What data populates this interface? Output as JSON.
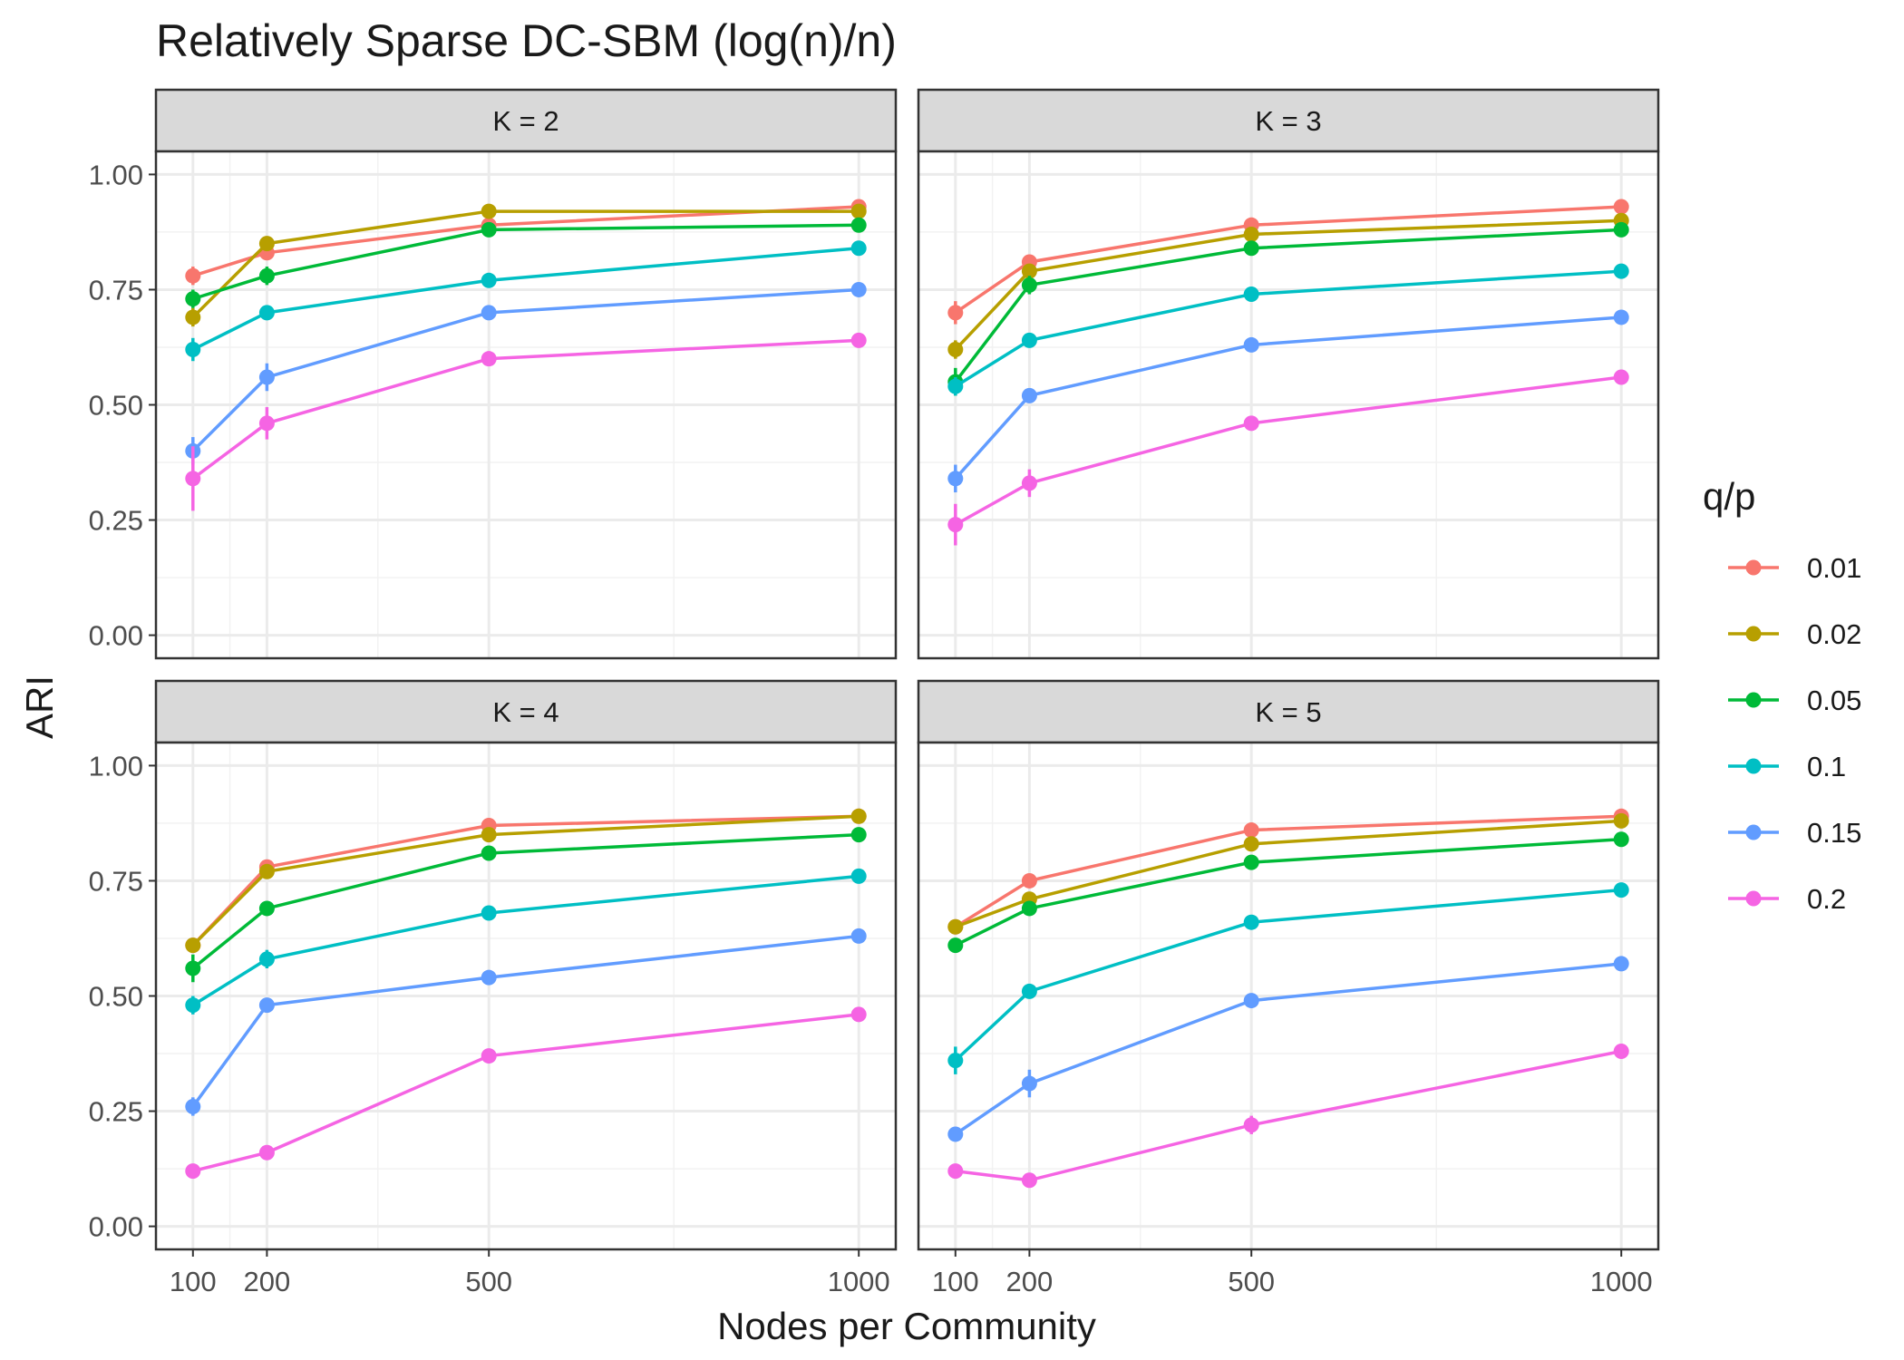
{
  "chart_data": {
    "type": "line",
    "title": "Relatively Sparse DC-SBM (log(n)/n)",
    "xlabel": "Nodes per Community",
    "ylabel": "ARI",
    "xlim": [
      50,
      1050
    ],
    "ylim": [
      -0.05,
      1.05
    ],
    "x_ticks": [
      100,
      200,
      500,
      1000
    ],
    "x_tick_labels": [
      "100",
      "200",
      "500",
      "1000"
    ],
    "y_ticks": [
      0,
      0.25,
      0.5,
      0.75,
      1.0
    ],
    "y_tick_labels": [
      "0.00",
      "0.25",
      "0.50",
      "0.75",
      "1.00"
    ],
    "legend": {
      "title": "q/p",
      "position": "right",
      "entries": [
        {
          "label": "0.01",
          "color": "#F8766D"
        },
        {
          "label": "0.02",
          "color": "#B79F00"
        },
        {
          "label": "0.05",
          "color": "#00BA38"
        },
        {
          "label": "0.1",
          "color": "#00BFC4"
        },
        {
          "label": "0.15",
          "color": "#619CFF"
        },
        {
          "label": "0.2",
          "color": "#F564E3"
        }
      ]
    },
    "x": [
      100,
      200,
      500,
      1000
    ],
    "panels": [
      {
        "label": "K = 2",
        "series": [
          {
            "name": "0.01",
            "values": [
              0.78,
              0.83,
              0.89,
              0.93
            ],
            "err": [
              0.02,
              0.015,
              0.01,
              0.01
            ]
          },
          {
            "name": "0.02",
            "values": [
              0.69,
              0.85,
              0.92,
              0.92
            ],
            "err": [
              0.02,
              0.015,
              0.01,
              0.01
            ]
          },
          {
            "name": "0.05",
            "values": [
              0.73,
              0.78,
              0.88,
              0.89
            ],
            "err": [
              0.02,
              0.02,
              0.01,
              0.01
            ]
          },
          {
            "name": "0.1",
            "values": [
              0.62,
              0.7,
              0.77,
              0.84
            ],
            "err": [
              0.025,
              0.015,
              0.01,
              0.01
            ]
          },
          {
            "name": "0.15",
            "values": [
              0.4,
              0.56,
              0.7,
              0.75
            ],
            "err": [
              0.03,
              0.03,
              0.01,
              0.01
            ]
          },
          {
            "name": "0.2",
            "values": [
              0.34,
              0.46,
              0.6,
              0.64
            ],
            "err": [
              0.07,
              0.035,
              0.01,
              0.01
            ]
          }
        ]
      },
      {
        "label": "K = 3",
        "series": [
          {
            "name": "0.01",
            "values": [
              0.7,
              0.81,
              0.89,
              0.93
            ],
            "err": [
              0.025,
              0.015,
              0.01,
              0.01
            ]
          },
          {
            "name": "0.02",
            "values": [
              0.62,
              0.79,
              0.87,
              0.9
            ],
            "err": [
              0.02,
              0.015,
              0.01,
              0.01
            ]
          },
          {
            "name": "0.05",
            "values": [
              0.55,
              0.76,
              0.84,
              0.88
            ],
            "err": [
              0.03,
              0.02,
              0.01,
              0.01
            ]
          },
          {
            "name": "0.1",
            "values": [
              0.54,
              0.64,
              0.74,
              0.79
            ],
            "err": [
              0.02,
              0.01,
              0.01,
              0.01
            ]
          },
          {
            "name": "0.15",
            "values": [
              0.34,
              0.52,
              0.63,
              0.69
            ],
            "err": [
              0.03,
              0.015,
              0.01,
              0.01
            ]
          },
          {
            "name": "0.2",
            "values": [
              0.24,
              0.33,
              0.46,
              0.56
            ],
            "err": [
              0.045,
              0.03,
              0.01,
              0.01
            ]
          }
        ]
      },
      {
        "label": "K = 4",
        "series": [
          {
            "name": "0.01",
            "values": [
              0.61,
              0.78,
              0.87,
              0.89
            ],
            "err": [
              0.015,
              0.01,
              0.01,
              0.01
            ]
          },
          {
            "name": "0.02",
            "values": [
              0.61,
              0.77,
              0.85,
              0.89
            ],
            "err": [
              0.015,
              0.01,
              0.01,
              0.01
            ]
          },
          {
            "name": "0.05",
            "values": [
              0.56,
              0.69,
              0.81,
              0.85
            ],
            "err": [
              0.03,
              0.01,
              0.01,
              0.01
            ]
          },
          {
            "name": "0.1",
            "values": [
              0.48,
              0.58,
              0.68,
              0.76
            ],
            "err": [
              0.02,
              0.02,
              0.01,
              0.01
            ]
          },
          {
            "name": "0.15",
            "values": [
              0.26,
              0.48,
              0.54,
              0.63
            ],
            "err": [
              0.02,
              0.01,
              0.01,
              0.01
            ]
          },
          {
            "name": "0.2",
            "values": [
              0.12,
              0.16,
              0.37,
              0.46
            ],
            "err": [
              0.01,
              0.01,
              0.01,
              0.01
            ]
          }
        ]
      },
      {
        "label": "K = 5",
        "series": [
          {
            "name": "0.01",
            "values": [
              0.65,
              0.75,
              0.86,
              0.89
            ],
            "err": [
              0.01,
              0.01,
              0.01,
              0.01
            ]
          },
          {
            "name": "0.02",
            "values": [
              0.65,
              0.71,
              0.83,
              0.88
            ],
            "err": [
              0.01,
              0.01,
              0.01,
              0.01
            ]
          },
          {
            "name": "0.05",
            "values": [
              0.61,
              0.69,
              0.79,
              0.84
            ],
            "err": [
              0.01,
              0.01,
              0.01,
              0.01
            ]
          },
          {
            "name": "0.1",
            "values": [
              0.36,
              0.51,
              0.66,
              0.73
            ],
            "err": [
              0.03,
              0.01,
              0.01,
              0.01
            ]
          },
          {
            "name": "0.15",
            "values": [
              0.2,
              0.31,
              0.49,
              0.57
            ],
            "err": [
              0.015,
              0.03,
              0.01,
              0.01
            ]
          },
          {
            "name": "0.2",
            "values": [
              0.12,
              0.1,
              0.22,
              0.38
            ],
            "err": [
              0.01,
              0.01,
              0.02,
              0.01
            ]
          }
        ]
      }
    ]
  }
}
